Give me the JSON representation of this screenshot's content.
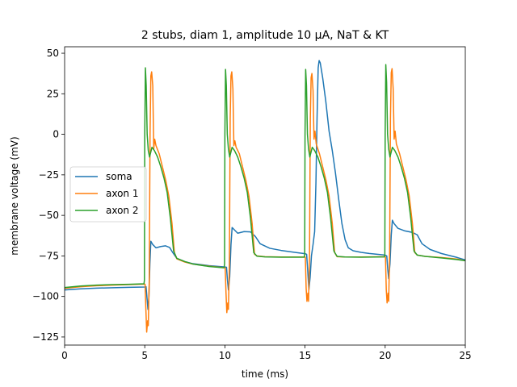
{
  "chart_data": {
    "type": "line",
    "title": "2 stubs, diam 1, amplitude 10 µA, NaT & KT",
    "xlabel": "time (ms)",
    "ylabel": "membrane voltage (mV)",
    "xlim": [
      0,
      25
    ],
    "ylim": [
      -130,
      54
    ],
    "xticks": [
      0,
      5,
      10,
      15,
      20,
      25
    ],
    "yticks": [
      -125,
      -100,
      -75,
      -50,
      -25,
      0,
      25,
      50
    ],
    "x_tick_labels": [
      "0",
      "5",
      "10",
      "15",
      "20",
      "25"
    ],
    "y_tick_labels": [
      "−125",
      "−100",
      "−75",
      "−50",
      "−25",
      "0",
      "25",
      "50"
    ],
    "legend_position": "center-left",
    "grid": false,
    "series": [
      {
        "name": "soma",
        "color": "#1f77b4",
        "points": [
          [
            0,
            -96
          ],
          [
            1,
            -95.3
          ],
          [
            2,
            -94.9
          ],
          [
            3,
            -94.6
          ],
          [
            4,
            -94.4
          ],
          [
            5,
            -94.2
          ],
          [
            5.08,
            -94
          ],
          [
            5.14,
            -101
          ],
          [
            5.2,
            -108
          ],
          [
            5.26,
            -100
          ],
          [
            5.32,
            -80
          ],
          [
            5.38,
            -66
          ],
          [
            5.5,
            -68
          ],
          [
            5.7,
            -70
          ],
          [
            6.0,
            -69.2
          ],
          [
            6.3,
            -68.8
          ],
          [
            6.55,
            -69.8
          ],
          [
            6.75,
            -73
          ],
          [
            7.0,
            -76.5
          ],
          [
            7.5,
            -78.5
          ],
          [
            8,
            -79.8
          ],
          [
            9,
            -81
          ],
          [
            10,
            -81.8
          ],
          [
            10.1,
            -82
          ],
          [
            10.16,
            -90
          ],
          [
            10.22,
            -96
          ],
          [
            10.3,
            -88
          ],
          [
            10.38,
            -68
          ],
          [
            10.45,
            -57.5
          ],
          [
            10.6,
            -59
          ],
          [
            10.8,
            -61
          ],
          [
            11.2,
            -60
          ],
          [
            11.6,
            -60.2
          ],
          [
            11.9,
            -63
          ],
          [
            12.2,
            -67.5
          ],
          [
            12.8,
            -70.3
          ],
          [
            13.5,
            -71.6
          ],
          [
            14.5,
            -73
          ],
          [
            15.0,
            -73.6
          ],
          [
            15.1,
            -74
          ],
          [
            15.16,
            -83
          ],
          [
            15.24,
            -96
          ],
          [
            15.32,
            -88
          ],
          [
            15.4,
            -75
          ],
          [
            15.5,
            -68
          ],
          [
            15.6,
            -60
          ],
          [
            15.68,
            -30
          ],
          [
            15.75,
            10
          ],
          [
            15.82,
            41
          ],
          [
            15.88,
            45.5
          ],
          [
            15.95,
            44
          ],
          [
            16.1,
            35
          ],
          [
            16.3,
            20
          ],
          [
            16.5,
            2
          ],
          [
            16.7,
            -10
          ],
          [
            16.9,
            -24
          ],
          [
            17.1,
            -40
          ],
          [
            17.3,
            -55
          ],
          [
            17.5,
            -65
          ],
          [
            17.7,
            -70
          ],
          [
            18,
            -71.8
          ],
          [
            18.5,
            -72.8
          ],
          [
            19,
            -73.5
          ],
          [
            20.0,
            -74.5
          ],
          [
            20.1,
            -75
          ],
          [
            20.16,
            -83
          ],
          [
            20.22,
            -89
          ],
          [
            20.3,
            -80
          ],
          [
            20.38,
            -62
          ],
          [
            20.45,
            -53
          ],
          [
            20.55,
            -55
          ],
          [
            20.8,
            -58
          ],
          [
            21.2,
            -59.5
          ],
          [
            21.7,
            -60.5
          ],
          [
            22.0,
            -62
          ],
          [
            22.3,
            -67.5
          ],
          [
            22.8,
            -71
          ],
          [
            23.5,
            -73.5
          ],
          [
            24.5,
            -76
          ],
          [
            25,
            -77.5
          ]
        ]
      },
      {
        "name": "axon 1",
        "color": "#ff7f0e",
        "points": [
          [
            0,
            -95
          ],
          [
            1,
            -94
          ],
          [
            2,
            -93.4
          ],
          [
            3,
            -93
          ],
          [
            4,
            -92.7
          ],
          [
            5,
            -92.4
          ],
          [
            5.02,
            -92.5
          ],
          [
            5.07,
            -108
          ],
          [
            5.12,
            -122
          ],
          [
            5.18,
            -115
          ],
          [
            5.22,
            -118
          ],
          [
            5.28,
            -90
          ],
          [
            5.33,
            0
          ],
          [
            5.38,
            36
          ],
          [
            5.43,
            38.5
          ],
          [
            5.5,
            30
          ],
          [
            5.56,
            -9
          ],
          [
            5.62,
            -3
          ],
          [
            5.7,
            -7
          ],
          [
            5.9,
            -12
          ],
          [
            6.1,
            -20
          ],
          [
            6.3,
            -28
          ],
          [
            6.5,
            -38
          ],
          [
            6.7,
            -55
          ],
          [
            6.85,
            -73
          ],
          [
            7.0,
            -76.8
          ],
          [
            7.5,
            -78.8
          ],
          [
            8,
            -80
          ],
          [
            9,
            -81.3
          ],
          [
            10,
            -82.3
          ],
          [
            10.02,
            -82.5
          ],
          [
            10.07,
            -98
          ],
          [
            10.12,
            -110
          ],
          [
            10.18,
            -104
          ],
          [
            10.22,
            -108
          ],
          [
            10.28,
            -80
          ],
          [
            10.33,
            10
          ],
          [
            10.38,
            36
          ],
          [
            10.43,
            38.5
          ],
          [
            10.5,
            28
          ],
          [
            10.56,
            -7
          ],
          [
            10.62,
            -4
          ],
          [
            10.7,
            -8
          ],
          [
            10.9,
            -12
          ],
          [
            11.1,
            -20
          ],
          [
            11.3,
            -28
          ],
          [
            11.5,
            -38
          ],
          [
            11.7,
            -55
          ],
          [
            11.85,
            -74
          ],
          [
            12.0,
            -75
          ],
          [
            12.5,
            -75.5
          ],
          [
            13.5,
            -75.7
          ],
          [
            15.0,
            -75.7
          ],
          [
            15.02,
            -76
          ],
          [
            15.07,
            -95
          ],
          [
            15.12,
            -103
          ],
          [
            15.18,
            -98
          ],
          [
            15.22,
            -103
          ],
          [
            15.28,
            -75
          ],
          [
            15.33,
            10
          ],
          [
            15.38,
            35
          ],
          [
            15.43,
            37.5
          ],
          [
            15.5,
            27
          ],
          [
            15.56,
            -3
          ],
          [
            15.62,
            2
          ],
          [
            15.7,
            -6
          ],
          [
            15.9,
            -12
          ],
          [
            16.1,
            -20
          ],
          [
            16.3,
            -28
          ],
          [
            16.5,
            -38
          ],
          [
            16.7,
            -55
          ],
          [
            16.85,
            -73
          ],
          [
            17.0,
            -75.5
          ],
          [
            17.5,
            -75.7
          ],
          [
            18.5,
            -75.7
          ],
          [
            20.0,
            -75.5
          ],
          [
            20.02,
            -76
          ],
          [
            20.07,
            -96
          ],
          [
            20.12,
            -104
          ],
          [
            20.18,
            -98
          ],
          [
            20.22,
            -103
          ],
          [
            20.28,
            -72
          ],
          [
            20.33,
            10
          ],
          [
            20.38,
            38
          ],
          [
            20.43,
            40.5
          ],
          [
            20.5,
            28
          ],
          [
            20.56,
            -3
          ],
          [
            20.62,
            2
          ],
          [
            20.7,
            -6
          ],
          [
            20.9,
            -12
          ],
          [
            21.1,
            -20
          ],
          [
            21.3,
            -28
          ],
          [
            21.5,
            -38
          ],
          [
            21.7,
            -55
          ],
          [
            21.85,
            -73
          ],
          [
            22.0,
            -74.5
          ],
          [
            22.5,
            -75.3
          ],
          [
            23.5,
            -76
          ],
          [
            24.5,
            -77
          ],
          [
            25,
            -78
          ]
        ]
      },
      {
        "name": "axon 2",
        "color": "#2ca02c",
        "points": [
          [
            0,
            -94.5
          ],
          [
            1,
            -93.6
          ],
          [
            2,
            -93
          ],
          [
            3,
            -92.7
          ],
          [
            4,
            -92.5
          ],
          [
            4.95,
            -92.2
          ],
          [
            4.98,
            -90
          ],
          [
            5.0,
            0
          ],
          [
            5.04,
            41
          ],
          [
            5.09,
            30
          ],
          [
            5.15,
            0
          ],
          [
            5.22,
            -10
          ],
          [
            5.3,
            -14
          ],
          [
            5.45,
            -8
          ],
          [
            5.6,
            -10
          ],
          [
            5.8,
            -14
          ],
          [
            6.0,
            -20
          ],
          [
            6.2,
            -27
          ],
          [
            6.4,
            -36
          ],
          [
            6.6,
            -52
          ],
          [
            6.8,
            -72
          ],
          [
            7.0,
            -76.5
          ],
          [
            7.5,
            -78.5
          ],
          [
            8,
            -80
          ],
          [
            9,
            -81.5
          ],
          [
            9.95,
            -82.3
          ],
          [
            9.98,
            -80
          ],
          [
            10.0,
            0
          ],
          [
            10.04,
            40
          ],
          [
            10.09,
            30
          ],
          [
            10.15,
            0
          ],
          [
            10.22,
            -9
          ],
          [
            10.3,
            -14
          ],
          [
            10.45,
            -8
          ],
          [
            10.6,
            -10
          ],
          [
            10.8,
            -14
          ],
          [
            11.0,
            -20
          ],
          [
            11.2,
            -27
          ],
          [
            11.4,
            -36
          ],
          [
            11.6,
            -52
          ],
          [
            11.8,
            -73
          ],
          [
            12.0,
            -75.2
          ],
          [
            12.5,
            -75.6
          ],
          [
            13.5,
            -75.8
          ],
          [
            14.95,
            -75.8
          ],
          [
            14.98,
            -74
          ],
          [
            15.0,
            0
          ],
          [
            15.04,
            40
          ],
          [
            15.09,
            30
          ],
          [
            15.15,
            0
          ],
          [
            15.22,
            -9
          ],
          [
            15.3,
            -14
          ],
          [
            15.45,
            -8
          ],
          [
            15.6,
            -10
          ],
          [
            15.8,
            -14
          ],
          [
            16.0,
            -20
          ],
          [
            16.2,
            -27
          ],
          [
            16.4,
            -36
          ],
          [
            16.6,
            -52
          ],
          [
            16.8,
            -72
          ],
          [
            17.0,
            -75.3
          ],
          [
            17.5,
            -75.7
          ],
          [
            18.5,
            -75.8
          ],
          [
            19.95,
            -75.6
          ],
          [
            19.98,
            -74
          ],
          [
            20.0,
            0
          ],
          [
            20.04,
            43
          ],
          [
            20.09,
            32
          ],
          [
            20.15,
            0
          ],
          [
            20.22,
            -9
          ],
          [
            20.3,
            -14
          ],
          [
            20.45,
            -8
          ],
          [
            20.6,
            -10
          ],
          [
            20.8,
            -14
          ],
          [
            21.0,
            -20
          ],
          [
            21.2,
            -27
          ],
          [
            21.4,
            -36
          ],
          [
            21.6,
            -52
          ],
          [
            21.8,
            -72
          ],
          [
            22.0,
            -74.5
          ],
          [
            22.5,
            -75.3
          ],
          [
            23.5,
            -76.2
          ],
          [
            24.5,
            -77.3
          ],
          [
            25,
            -78
          ]
        ]
      }
    ]
  }
}
